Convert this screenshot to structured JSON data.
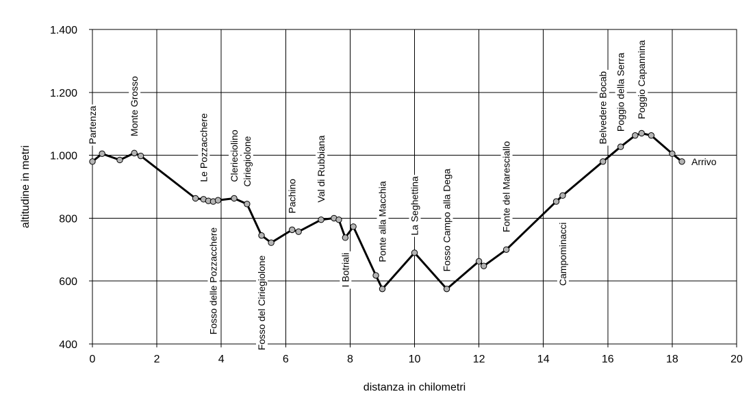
{
  "chart_data": {
    "type": "line",
    "title": "",
    "xlabel": "distanza in chilometri",
    "ylabel": "altitudine  in metri",
    "xlim": [
      0,
      20
    ],
    "ylim": [
      400,
      1400
    ],
    "x_ticks": [
      0,
      2,
      4,
      6,
      8,
      10,
      12,
      14,
      16,
      18,
      20
    ],
    "x_tick_labels": [
      "0",
      "2",
      "4",
      "6",
      "8",
      "10",
      "12",
      "14",
      "16",
      "18",
      "20"
    ],
    "y_ticks": [
      400,
      600,
      800,
      1000,
      1200,
      1400
    ],
    "y_tick_labels": [
      "400",
      "600",
      "800",
      "1.000",
      "1.200",
      "1.400"
    ],
    "grid": true,
    "legend": "none",
    "line_color": "#000000",
    "marker_color": "#b4b4b4",
    "points": [
      {
        "x": 0.0,
        "y": 980
      },
      {
        "x": 0.3,
        "y": 1005
      },
      {
        "x": 0.85,
        "y": 985
      },
      {
        "x": 1.3,
        "y": 1007
      },
      {
        "x": 1.5,
        "y": 998
      },
      {
        "x": 3.2,
        "y": 863
      },
      {
        "x": 3.45,
        "y": 860
      },
      {
        "x": 3.6,
        "y": 855
      },
      {
        "x": 3.75,
        "y": 853
      },
      {
        "x": 3.9,
        "y": 857
      },
      {
        "x": 4.4,
        "y": 863
      },
      {
        "x": 4.8,
        "y": 845
      },
      {
        "x": 5.25,
        "y": 745
      },
      {
        "x": 5.55,
        "y": 722
      },
      {
        "x": 6.2,
        "y": 763
      },
      {
        "x": 6.4,
        "y": 757
      },
      {
        "x": 7.1,
        "y": 795
      },
      {
        "x": 7.5,
        "y": 800
      },
      {
        "x": 7.65,
        "y": 795
      },
      {
        "x": 7.85,
        "y": 738
      },
      {
        "x": 8.1,
        "y": 773
      },
      {
        "x": 8.8,
        "y": 618
      },
      {
        "x": 9.0,
        "y": 575
      },
      {
        "x": 10.0,
        "y": 690
      },
      {
        "x": 11.0,
        "y": 575
      },
      {
        "x": 12.0,
        "y": 663
      },
      {
        "x": 12.15,
        "y": 648
      },
      {
        "x": 12.85,
        "y": 700
      },
      {
        "x": 14.4,
        "y": 853
      },
      {
        "x": 14.6,
        "y": 872
      },
      {
        "x": 15.85,
        "y": 980
      },
      {
        "x": 16.4,
        "y": 1027
      },
      {
        "x": 16.85,
        "y": 1063
      },
      {
        "x": 17.05,
        "y": 1070
      },
      {
        "x": 17.35,
        "y": 1063
      },
      {
        "x": 18.0,
        "y": 1005
      },
      {
        "x": 18.3,
        "y": 980
      }
    ],
    "annotations": [
      {
        "text": "Partenza",
        "x": 0.0,
        "y_from": 1035,
        "orientation": "vertical"
      },
      {
        "text": "Monte Grosso",
        "x": 1.3,
        "y_from": 1060,
        "orientation": "vertical"
      },
      {
        "text": "Le Pozzacchere",
        "x": 3.45,
        "y_from": 915,
        "orientation": "vertical"
      },
      {
        "text": "Fosso delle Pozzacchere",
        "x": 3.75,
        "y_from": 430,
        "orientation": "vertical"
      },
      {
        "text": "Clerieciolino",
        "x": 4.4,
        "y_from": 915,
        "orientation": "vertical"
      },
      {
        "text": "Ciriegiolone",
        "x": 4.8,
        "y_from": 900,
        "orientation": "vertical"
      },
      {
        "text": "Fosso del Ciriegiolone",
        "x": 5.25,
        "y_from": 380,
        "orientation": "vertical"
      },
      {
        "text": "Pachino",
        "x": 6.2,
        "y_from": 815,
        "orientation": "vertical"
      },
      {
        "text": "Val di Rubbiana",
        "x": 7.1,
        "y_from": 850,
        "orientation": "vertical"
      },
      {
        "text": "I Botriali",
        "x": 7.85,
        "y_from": 580,
        "orientation": "vertical"
      },
      {
        "text": "Ponte alla Macchia",
        "x": 9.0,
        "y_from": 660,
        "orientation": "vertical"
      },
      {
        "text": "La Seghettina",
        "x": 10.0,
        "y_from": 745,
        "orientation": "vertical"
      },
      {
        "text": "Fosso Campo alla Dega",
        "x": 11.0,
        "y_from": 630,
        "orientation": "vertical"
      },
      {
        "text": "Fonte del Maresciallo",
        "x": 12.85,
        "y_from": 755,
        "orientation": "vertical"
      },
      {
        "text": "Campominacci",
        "x": 14.6,
        "y_from": 585,
        "orientation": "vertical"
      },
      {
        "text": "Belvedere Bocab",
        "x": 15.85,
        "y_from": 1035,
        "orientation": "vertical"
      },
      {
        "text": "Poggio della Serra",
        "x": 16.4,
        "y_from": 1075,
        "orientation": "vertical"
      },
      {
        "text": "Poggio Capannina",
        "x": 17.05,
        "y_from": 1115,
        "orientation": "vertical"
      },
      {
        "text": "Arrivo",
        "x": 18.3,
        "y_at": 980,
        "orientation": "horizontal"
      }
    ]
  }
}
